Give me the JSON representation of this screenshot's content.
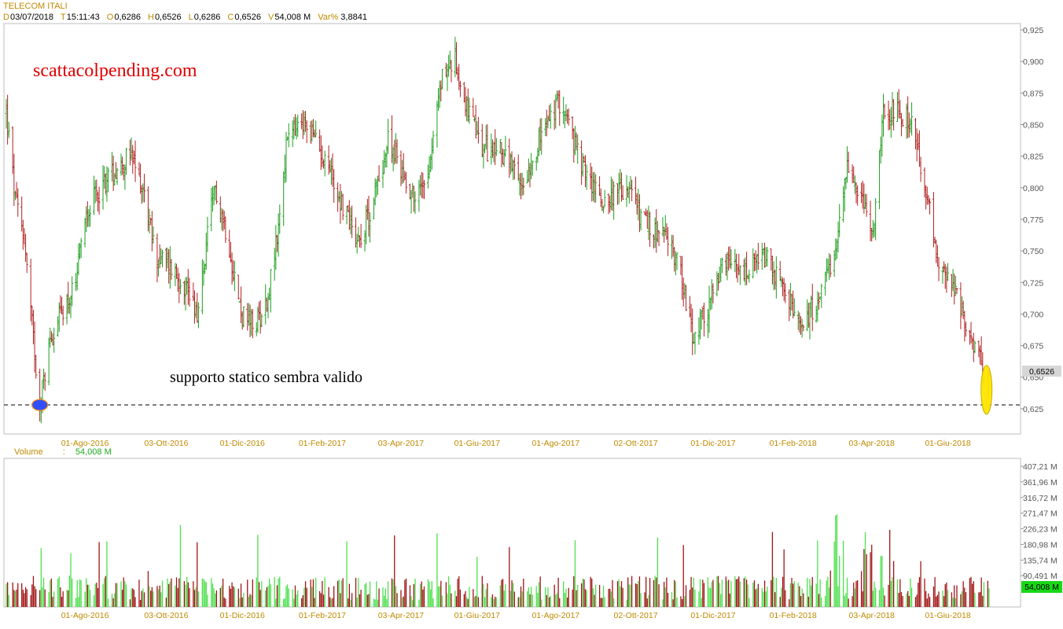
{
  "header": {
    "title": "TELECOM ITALI",
    "fields": [
      {
        "key": "D",
        "value": "03/07/2018"
      },
      {
        "key": "T",
        "value": "15:11:43"
      },
      {
        "key": "O",
        "value": "0,6286"
      },
      {
        "key": "H",
        "value": "0,6526"
      },
      {
        "key": "L",
        "value": "0,6286"
      },
      {
        "key": "C",
        "value": "0,6526"
      },
      {
        "key": "V",
        "value": "54,008 M"
      },
      {
        "key": "Var%",
        "value": "3,8841"
      }
    ]
  },
  "volume_header": {
    "label": "Volume",
    "separator": ":",
    "value": "54,008 M"
  },
  "annotations": {
    "brand": "scattacolpending.com",
    "note": "supporto statico sembra valido",
    "last_price_tag": "0,6526",
    "last_volume_tag": "54,008 M"
  },
  "colors": {
    "up": "#1f9e1f",
    "down": "#b22222",
    "vol_up": "#4fe04f",
    "vol_down": "#a01515",
    "support_marker": "#3050ff",
    "current_marker": "#ffe600",
    "brand": "#e00000"
  },
  "chart_data": [
    {
      "type": "ohlc",
      "title": "TELECOM ITALI",
      "ylim": [
        0.605,
        0.93
      ],
      "y_ticks": [
        "0,625",
        "0,650",
        "0,675",
        "0,700",
        "0,725",
        "0,750",
        "0,775",
        "0,800",
        "0,825",
        "0,850",
        "0,875",
        "0,900",
        "0,925"
      ],
      "x_tick_labels": [
        "01-Ago-2016",
        "03-Ott-2016",
        "01-Dic-2016",
        "01-Feb-2017",
        "03-Apr-2017",
        "01-Giu-2017",
        "01-Ago-2017",
        "02-Ott-2017",
        "01-Dic-2017",
        "01-Feb-2018",
        "03-Apr-2018",
        "01-Giu-2018"
      ],
      "x_range": [
        "2016-06-01",
        "2018-07-03"
      ],
      "support_level": 0.628,
      "last_close": 0.6526,
      "series_anchor_closes": [
        [
          "2016-06-01",
          0.86
        ],
        [
          "2016-06-08",
          0.79
        ],
        [
          "2016-06-15",
          0.76
        ],
        [
          "2016-06-22",
          0.68
        ],
        [
          "2016-06-27",
          0.628
        ],
        [
          "2016-07-05",
          0.68
        ],
        [
          "2016-07-15",
          0.705
        ],
        [
          "2016-07-25",
          0.72
        ],
        [
          "2016-08-01",
          0.78
        ],
        [
          "2016-08-20",
          0.81
        ],
        [
          "2016-09-05",
          0.825
        ],
        [
          "2016-09-15",
          0.8
        ],
        [
          "2016-09-25",
          0.745
        ],
        [
          "2016-10-05",
          0.74
        ],
        [
          "2016-10-20",
          0.72
        ],
        [
          "2016-10-28",
          0.7
        ],
        [
          "2016-11-05",
          0.77
        ],
        [
          "2016-11-10",
          0.8
        ],
        [
          "2016-11-20",
          0.76
        ],
        [
          "2016-11-30",
          0.7
        ],
        [
          "2016-12-10",
          0.69
        ],
        [
          "2016-12-20",
          0.71
        ],
        [
          "2016-12-28",
          0.76
        ],
        [
          "2017-01-05",
          0.84
        ],
        [
          "2017-01-20",
          0.85
        ],
        [
          "2017-02-05",
          0.82
        ],
        [
          "2017-02-15",
          0.79
        ],
        [
          "2017-03-01",
          0.76
        ],
        [
          "2017-03-10",
          0.78
        ],
        [
          "2017-03-25",
          0.84
        ],
        [
          "2017-04-05",
          0.81
        ],
        [
          "2017-04-15",
          0.79
        ],
        [
          "2017-04-25",
          0.82
        ],
        [
          "2017-05-05",
          0.89
        ],
        [
          "2017-05-15",
          0.9
        ],
        [
          "2017-05-25",
          0.86
        ],
        [
          "2017-06-05",
          0.83
        ],
        [
          "2017-06-20",
          0.83
        ],
        [
          "2017-07-05",
          0.8
        ],
        [
          "2017-07-20",
          0.84
        ],
        [
          "2017-08-05",
          0.87
        ],
        [
          "2017-08-20",
          0.82
        ],
        [
          "2017-09-05",
          0.79
        ],
        [
          "2017-09-25",
          0.8
        ],
        [
          "2017-10-10",
          0.77
        ],
        [
          "2017-10-25",
          0.76
        ],
        [
          "2017-11-05",
          0.74
        ],
        [
          "2017-11-15",
          0.68
        ],
        [
          "2017-11-25",
          0.7
        ],
        [
          "2017-12-10",
          0.74
        ],
        [
          "2017-12-25",
          0.73
        ],
        [
          "2018-01-10",
          0.745
        ],
        [
          "2018-01-25",
          0.72
        ],
        [
          "2018-02-05",
          0.69
        ],
        [
          "2018-02-20",
          0.71
        ],
        [
          "2018-03-05",
          0.74
        ],
        [
          "2018-03-15",
          0.82
        ],
        [
          "2018-03-25",
          0.79
        ],
        [
          "2018-04-05",
          0.77
        ],
        [
          "2018-04-12",
          0.86
        ],
        [
          "2018-04-25",
          0.86
        ],
        [
          "2018-05-05",
          0.85
        ],
        [
          "2018-05-15",
          0.8
        ],
        [
          "2018-05-25",
          0.74
        ],
        [
          "2018-06-05",
          0.72
        ],
        [
          "2018-06-15",
          0.69
        ],
        [
          "2018-06-25",
          0.67
        ],
        [
          "2018-07-02",
          0.63
        ],
        [
          "2018-07-03",
          0.6526
        ]
      ]
    },
    {
      "type": "bar",
      "title": "Volume",
      "ylim": [
        0,
        430
      ],
      "units": "M",
      "y_ticks": [
        "54,008 M",
        "90,491 M",
        "135,74 M",
        "180,98 M",
        "226,23 M",
        "271,47 M",
        "316,72 M",
        "361,96 M",
        "407,21 M"
      ],
      "x_tick_labels": [
        "01-Ago-2016",
        "03-Ott-2016",
        "01-Dic-2016",
        "01-Feb-2017",
        "03-Apr-2017",
        "01-Giu-2017",
        "01-Ago-2017",
        "02-Ott-2017",
        "01-Dic-2017",
        "01-Feb-2018",
        "03-Apr-2018",
        "01-Giu-2018"
      ],
      "last_value": 54.008
    }
  ]
}
